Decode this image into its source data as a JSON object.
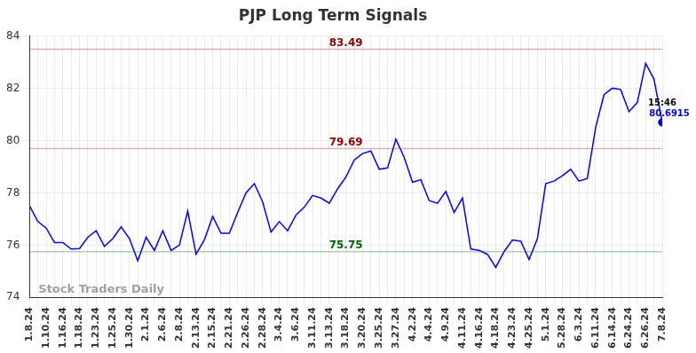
{
  "chart_data": {
    "type": "line",
    "title": "PJP Long Term Signals",
    "categories": [
      "1.8.24",
      null,
      "1.10.24",
      null,
      "1.16.24",
      null,
      "1.18.24",
      null,
      "1.23.24",
      null,
      "1.25.24",
      null,
      "1.30.24",
      null,
      "2.1.24",
      null,
      "2.6.24",
      null,
      "2.8.24",
      null,
      "2.13.24",
      null,
      "2.15.24",
      null,
      "2.21.24",
      null,
      "2.26.24",
      null,
      "2.28.24",
      null,
      "3.4.24",
      null,
      "3.6.24",
      null,
      "3.11.24",
      null,
      "3.13.24",
      null,
      "3.18.24",
      null,
      "3.20.24",
      null,
      "3.25.24",
      null,
      "3.27.24",
      null,
      "4.2.24",
      null,
      "4.4.24",
      null,
      "4.9.24",
      null,
      "4.11.24",
      null,
      "4.16.24",
      null,
      "4.18.24",
      null,
      "4.23.24",
      null,
      "4.25.24",
      null,
      "5.1.24",
      null,
      "5.28.24",
      null,
      "6.3.24",
      null,
      "6.11.24",
      null,
      "6.14.24",
      null,
      "6.24.24",
      null,
      "6.26.24",
      null,
      "7.8.24"
    ],
    "values": [
      77.5,
      76.9,
      76.65,
      76.1,
      76.1,
      75.85,
      75.87,
      76.3,
      76.55,
      75.95,
      76.25,
      76.7,
      76.25,
      75.4,
      76.3,
      75.8,
      76.55,
      75.8,
      76.0,
      77.3,
      75.65,
      76.2,
      77.1,
      76.45,
      76.45,
      77.25,
      78.0,
      78.35,
      77.65,
      76.5,
      76.9,
      76.55,
      77.15,
      77.45,
      77.9,
      77.8,
      77.6,
      78.15,
      78.6,
      79.25,
      79.5,
      79.6,
      78.9,
      78.95,
      80.05,
      79.35,
      78.4,
      78.5,
      77.7,
      77.6,
      78.05,
      77.25,
      77.8,
      75.85,
      75.8,
      75.65,
      75.15,
      75.75,
      76.2,
      76.15,
      75.45,
      76.25,
      78.35,
      78.45,
      78.65,
      78.9,
      78.45,
      78.55,
      80.5,
      81.75,
      82.0,
      81.95,
      81.1,
      81.45,
      82.95,
      82.35,
      80.6915
    ],
    "color": "#0000ff",
    "ylim": [
      74,
      84
    ],
    "yticks": [
      74,
      76,
      78,
      80,
      82,
      84
    ],
    "grid": true,
    "annotations": [
      {
        "value": 83.49,
        "color": "#8b0000"
      },
      {
        "value": 79.69,
        "color": "#8b0000"
      },
      {
        "value": 75.75,
        "color": "#006400"
      }
    ],
    "last_point": {
      "time": "15:46",
      "value": 80.6915
    },
    "watermark": "Stock Traders Daily"
  }
}
